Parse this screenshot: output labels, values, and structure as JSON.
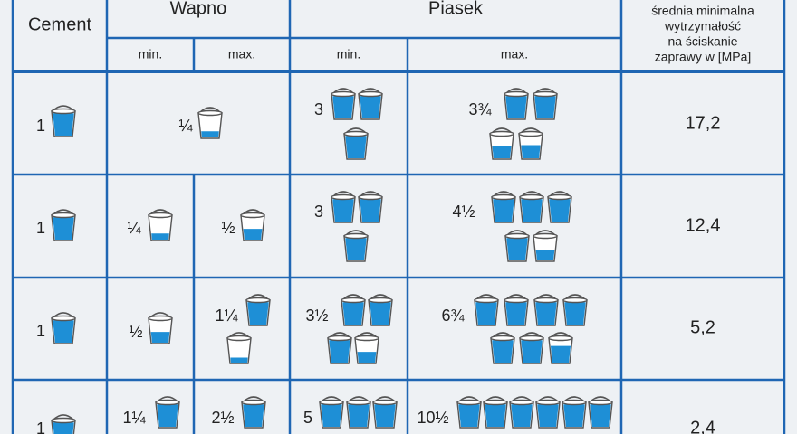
{
  "header": {
    "cement": "Cement",
    "wapno": "Wapno",
    "piasek": "Piasek",
    "strength": [
      "średnia minimalna",
      "wytrzymałość",
      "na ściskanie",
      "zaprawy w [MPa]"
    ]
  },
  "subheader": [
    "min.",
    "max.",
    "min.",
    "max."
  ],
  "table": {
    "rows": [
      [
        "1",
        "¼",
        "3",
        "3¾",
        "17,2"
      ],
      [
        "1",
        "¼",
        "½",
        "3",
        "4½",
        "12,4"
      ],
      [
        "1",
        "½",
        "1¼",
        "3½",
        "6¾",
        "5,2"
      ],
      [
        "1",
        "1¼",
        "2½",
        "5",
        "10½",
        "2,4"
      ]
    ]
  }
}
